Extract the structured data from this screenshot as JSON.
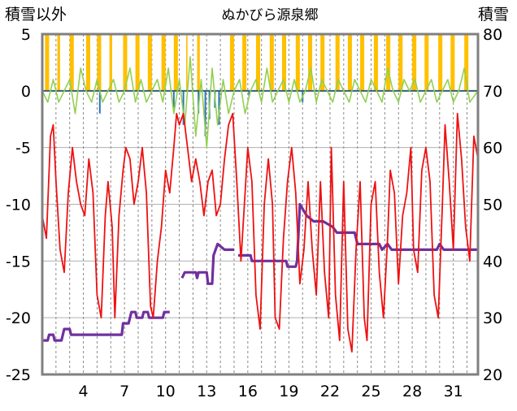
{
  "chart_data": {
    "type": "line",
    "title": "ぬかびら源泉郷",
    "left_axis_label": "積雪以外",
    "right_axis_label": "積雪",
    "x_ticks": [
      4,
      7,
      10,
      13,
      16,
      19,
      22,
      25,
      28,
      31
    ],
    "x_range": [
      1,
      32.8
    ],
    "y_left": {
      "range": [
        -25,
        5
      ],
      "ticks": [
        5,
        0,
        -5,
        -10,
        -15,
        -20,
        -25
      ]
    },
    "y_right": {
      "range": [
        20,
        80
      ],
      "ticks": [
        80,
        70,
        60,
        50,
        40,
        30,
        20
      ]
    },
    "grid": {
      "horizontal": true,
      "vertical_dashed": true
    },
    "colors": {
      "temperature": "#ee1111",
      "snow_depth": "#7030a0",
      "wind": "#92d050",
      "sunshine": "#ffc000",
      "precipitation": "#2e75b6",
      "zero_line": "#3a5f6a",
      "frame": "#808080"
    },
    "series": [
      {
        "key": "temperature",
        "axis": "left",
        "points": [
          [
            1,
            -11
          ],
          [
            1.3,
            -13
          ],
          [
            1.6,
            -4
          ],
          [
            1.8,
            -3
          ],
          [
            2,
            -8
          ],
          [
            2.3,
            -14
          ],
          [
            2.6,
            -16
          ],
          [
            2.9,
            -9
          ],
          [
            3.2,
            -5
          ],
          [
            3.5,
            -8
          ],
          [
            3.8,
            -10
          ],
          [
            4.1,
            -11
          ],
          [
            4.4,
            -6
          ],
          [
            4.7,
            -9
          ],
          [
            5,
            -18
          ],
          [
            5.3,
            -20
          ],
          [
            5.6,
            -11
          ],
          [
            5.8,
            -8
          ],
          [
            6.1,
            -12
          ],
          [
            6.3,
            -20
          ],
          [
            6.6,
            -11
          ],
          [
            6.9,
            -7
          ],
          [
            7.1,
            -5
          ],
          [
            7.4,
            -6
          ],
          [
            7.7,
            -10
          ],
          [
            8,
            -8
          ],
          [
            8.3,
            -5
          ],
          [
            8.6,
            -9
          ],
          [
            8.9,
            -19
          ],
          [
            9.1,
            -20
          ],
          [
            9.4,
            -15
          ],
          [
            9.7,
            -12
          ],
          [
            10,
            -7
          ],
          [
            10.3,
            -9
          ],
          [
            10.6,
            -5
          ],
          [
            10.8,
            -2
          ],
          [
            11,
            -3
          ],
          [
            11.3,
            -2
          ],
          [
            11.6,
            -5
          ],
          [
            11.9,
            -8
          ],
          [
            12.2,
            -6
          ],
          [
            12.5,
            -8
          ],
          [
            12.8,
            -11
          ],
          [
            13.1,
            -8
          ],
          [
            13.4,
            -7
          ],
          [
            13.7,
            -11
          ],
          [
            14,
            -10
          ],
          [
            14.3,
            -6
          ],
          [
            14.6,
            -3
          ],
          [
            14.9,
            -2
          ],
          [
            15.2,
            -8
          ],
          [
            15.5,
            -15
          ],
          [
            15.8,
            -9
          ],
          [
            16,
            -5
          ],
          [
            16.3,
            -8
          ],
          [
            16.6,
            -18
          ],
          [
            16.9,
            -21
          ],
          [
            17.2,
            -10
          ],
          [
            17.5,
            -6
          ],
          [
            17.8,
            -10
          ],
          [
            18,
            -20
          ],
          [
            18.3,
            -21
          ],
          [
            18.6,
            -13
          ],
          [
            18.9,
            -8
          ],
          [
            19.2,
            -5
          ],
          [
            19.5,
            -9
          ],
          [
            19.8,
            -17
          ],
          [
            20.1,
            -14
          ],
          [
            20.4,
            -8
          ],
          [
            20.7,
            -14
          ],
          [
            21,
            -18
          ],
          [
            21.3,
            -8
          ],
          [
            21.6,
            -16
          ],
          [
            21.9,
            -20
          ],
          [
            22.1,
            -5
          ],
          [
            22.4,
            -18
          ],
          [
            22.7,
            -22
          ],
          [
            23,
            -8
          ],
          [
            23.3,
            -21
          ],
          [
            23.6,
            -23
          ],
          [
            23.9,
            -14
          ],
          [
            24.2,
            -8
          ],
          [
            24.5,
            -20
          ],
          [
            24.7,
            -22
          ],
          [
            25,
            -10
          ],
          [
            25.3,
            -8
          ],
          [
            25.6,
            -16
          ],
          [
            25.9,
            -20
          ],
          [
            26.2,
            -13
          ],
          [
            26.4,
            -7
          ],
          [
            26.7,
            -9
          ],
          [
            27,
            -17
          ],
          [
            27.3,
            -11
          ],
          [
            27.6,
            -9
          ],
          [
            27.9,
            -5
          ],
          [
            28.1,
            -14
          ],
          [
            28.4,
            -16
          ],
          [
            28.7,
            -7
          ],
          [
            29,
            -5
          ],
          [
            29.3,
            -8
          ],
          [
            29.6,
            -18
          ],
          [
            29.9,
            -20
          ],
          [
            30.2,
            -10
          ],
          [
            30.4,
            -3
          ],
          [
            30.7,
            -8
          ],
          [
            31,
            -14
          ],
          [
            31.3,
            -2
          ],
          [
            31.6,
            -6
          ],
          [
            31.9,
            -12
          ],
          [
            32.2,
            -15
          ],
          [
            32.5,
            -4
          ],
          [
            32.8,
            -6
          ]
        ]
      },
      {
        "key": "snow_depth",
        "axis": "right",
        "points": [
          [
            1,
            26
          ],
          [
            1.4,
            26
          ],
          [
            1.5,
            27
          ],
          [
            1.8,
            27
          ],
          [
            1.9,
            26
          ],
          [
            2.4,
            26
          ],
          [
            2.6,
            28
          ],
          [
            3,
            28
          ],
          [
            3.1,
            27
          ],
          [
            6.8,
            27
          ],
          [
            6.9,
            29
          ],
          [
            7.3,
            29
          ],
          [
            7.5,
            31
          ],
          [
            7.8,
            31
          ],
          [
            7.9,
            30
          ],
          [
            8.3,
            30
          ],
          [
            8.4,
            31
          ],
          [
            8.7,
            31
          ],
          [
            8.8,
            30
          ],
          [
            9.8,
            30
          ],
          [
            9.9,
            31
          ],
          [
            10.3,
            31
          ],
          [
            null,
            null
          ],
          [
            11.2,
            37
          ],
          [
            11.4,
            38
          ],
          [
            12.2,
            38
          ],
          [
            12.3,
            37
          ],
          [
            12.4,
            38
          ],
          [
            13,
            38
          ],
          [
            13.1,
            36
          ],
          [
            13.4,
            36
          ],
          [
            13.5,
            41
          ],
          [
            13.8,
            43
          ],
          [
            14.3,
            42
          ],
          [
            14.6,
            42
          ],
          [
            15,
            42
          ],
          [
            null,
            null
          ],
          [
            15.3,
            41
          ],
          [
            16.2,
            41
          ],
          [
            16.3,
            40
          ],
          [
            18.8,
            40
          ],
          [
            18.9,
            39
          ],
          [
            19.5,
            39
          ],
          [
            19.6,
            40
          ],
          [
            19.8,
            50
          ],
          [
            20.3,
            48
          ],
          [
            20.8,
            47
          ],
          [
            21.5,
            47
          ],
          [
            22.2,
            46
          ],
          [
            22.5,
            45
          ],
          [
            23.8,
            45
          ],
          [
            24,
            43
          ],
          [
            25.6,
            43
          ],
          [
            25.8,
            42
          ],
          [
            26.2,
            43
          ],
          [
            26.5,
            42
          ],
          [
            29.8,
            42
          ],
          [
            30,
            43
          ],
          [
            30.3,
            42
          ],
          [
            32.8,
            42
          ]
        ]
      },
      {
        "key": "wind",
        "axis": "left",
        "points": [
          [
            1,
            0
          ],
          [
            1.4,
            -1
          ],
          [
            1.8,
            1
          ],
          [
            2.2,
            -1
          ],
          [
            2.6,
            0
          ],
          [
            3,
            1
          ],
          [
            3.4,
            -2
          ],
          [
            3.8,
            2
          ],
          [
            4.2,
            0
          ],
          [
            4.6,
            -1
          ],
          [
            5,
            1
          ],
          [
            5.4,
            -1
          ],
          [
            5.8,
            0
          ],
          [
            6.2,
            1
          ],
          [
            6.6,
            -1
          ],
          [
            7,
            0
          ],
          [
            7.4,
            2
          ],
          [
            7.8,
            -1
          ],
          [
            8.2,
            1
          ],
          [
            8.6,
            -1
          ],
          [
            9,
            0
          ],
          [
            9.4,
            1
          ],
          [
            9.8,
            -1
          ],
          [
            10.2,
            2
          ],
          [
            10.6,
            -2
          ],
          [
            11,
            1
          ],
          [
            11.4,
            -3
          ],
          [
            11.8,
            3
          ],
          [
            12.2,
            -4
          ],
          [
            12.6,
            1
          ],
          [
            13,
            -5
          ],
          [
            13.4,
            2
          ],
          [
            13.8,
            -3
          ],
          [
            14.2,
            1
          ],
          [
            14.6,
            -2
          ],
          [
            15,
            0
          ],
          [
            15.4,
            1
          ],
          [
            15.8,
            -2
          ],
          [
            16.2,
            0
          ],
          [
            16.6,
            1
          ],
          [
            17,
            -1
          ],
          [
            17.4,
            2
          ],
          [
            17.8,
            -1
          ],
          [
            18.2,
            0
          ],
          [
            18.6,
            1
          ],
          [
            19,
            -1
          ],
          [
            19.4,
            1
          ],
          [
            19.8,
            -1
          ],
          [
            20.2,
            0
          ],
          [
            20.6,
            2
          ],
          [
            21,
            -1
          ],
          [
            21.4,
            1
          ],
          [
            21.8,
            0
          ],
          [
            22.2,
            -1
          ],
          [
            22.6,
            1
          ],
          [
            23,
            0
          ],
          [
            23.4,
            -1
          ],
          [
            23.8,
            1
          ],
          [
            24.2,
            0
          ],
          [
            24.6,
            -1
          ],
          [
            25,
            1
          ],
          [
            25.4,
            0
          ],
          [
            25.8,
            -1
          ],
          [
            26.2,
            2
          ],
          [
            26.6,
            0
          ],
          [
            27,
            -1
          ],
          [
            27.4,
            1
          ],
          [
            27.8,
            0
          ],
          [
            28.2,
            1
          ],
          [
            28.6,
            -1
          ],
          [
            29,
            0
          ],
          [
            29.4,
            1
          ],
          [
            29.8,
            -1
          ],
          [
            30.2,
            0
          ],
          [
            30.6,
            1
          ],
          [
            31,
            -1
          ],
          [
            31.4,
            0
          ],
          [
            31.8,
            2
          ],
          [
            32.2,
            -1
          ],
          [
            32.8,
            0
          ]
        ]
      }
    ],
    "sunshine_bars": {
      "axis": "left",
      "base": 0,
      "top": 5,
      "days": [
        [
          1.2,
          1.5
        ],
        [
          2.1,
          2.3
        ],
        [
          3.0,
          3.3
        ],
        [
          4.2,
          4.5
        ],
        [
          5.0,
          5.3
        ],
        [
          5.9,
          6.1
        ],
        [
          6.9,
          7.2
        ],
        [
          7.8,
          8.1
        ],
        [
          8.7,
          9.0
        ],
        [
          9.7,
          10.0
        ],
        [
          10.6,
          10.9
        ],
        [
          11.5,
          11.6
        ],
        [
          12.3,
          12.5
        ],
        [
          14.7,
          15.0
        ],
        [
          15.6,
          15.9
        ],
        [
          16.6,
          16.9
        ],
        [
          17.6,
          17.9
        ],
        [
          18.5,
          18.8
        ],
        [
          19.5,
          19.8
        ],
        [
          20.4,
          20.7
        ],
        [
          21.3,
          21.6
        ],
        [
          22.4,
          22.7
        ],
        [
          23.3,
          23.6
        ],
        [
          24.2,
          24.5
        ],
        [
          25.2,
          25.5
        ],
        [
          26.1,
          26.4
        ],
        [
          27.0,
          27.3
        ],
        [
          28.0,
          28.3
        ],
        [
          28.9,
          29.2
        ],
        [
          29.9,
          30.2
        ],
        [
          30.8,
          31.1
        ],
        [
          31.8,
          32.1
        ]
      ]
    },
    "precipitation_bars": {
      "axis": "left",
      "base": 0,
      "items": [
        [
          5.2,
          -2
        ],
        [
          10.6,
          -1.5
        ],
        [
          11.3,
          -3
        ],
        [
          12.4,
          -2
        ],
        [
          12.9,
          -4
        ],
        [
          13.2,
          -2.5
        ],
        [
          13.6,
          -1.5
        ],
        [
          13.9,
          -3
        ],
        [
          16.1,
          -0.5
        ],
        [
          20.0,
          -1
        ]
      ]
    }
  }
}
